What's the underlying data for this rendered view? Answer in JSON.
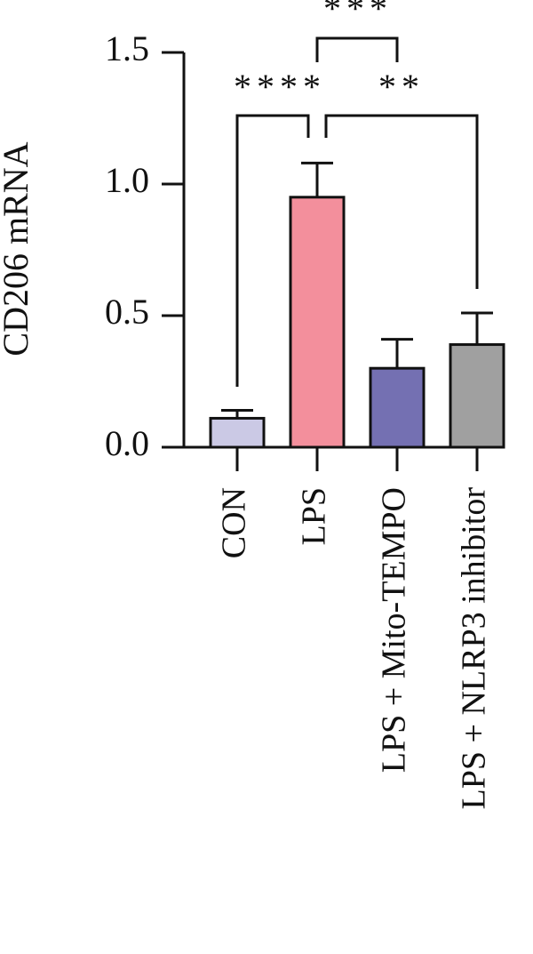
{
  "chart_data": {
    "type": "bar",
    "ylabel": "CD206 mRNA",
    "categories": [
      "CON",
      "LPS",
      "LPS + Mito-TEMPO",
      "LPS + NLRP3 inhibitor"
    ],
    "values": [
      0.11,
      0.95,
      0.3,
      0.39
    ],
    "errors": [
      0.03,
      0.13,
      0.11,
      0.12
    ],
    "colors": [
      "#cbc9e5",
      "#f38f9c",
      "#7470b2",
      "#a0a0a0"
    ],
    "ylim": [
      0,
      1.5
    ],
    "yticks": [
      {
        "value": 0,
        "label": "0.0"
      },
      0.5,
      {
        "value": 1,
        "label": "1.0"
      },
      1.5
    ],
    "annotations": [
      "****",
      "***",
      "**"
    ]
  }
}
